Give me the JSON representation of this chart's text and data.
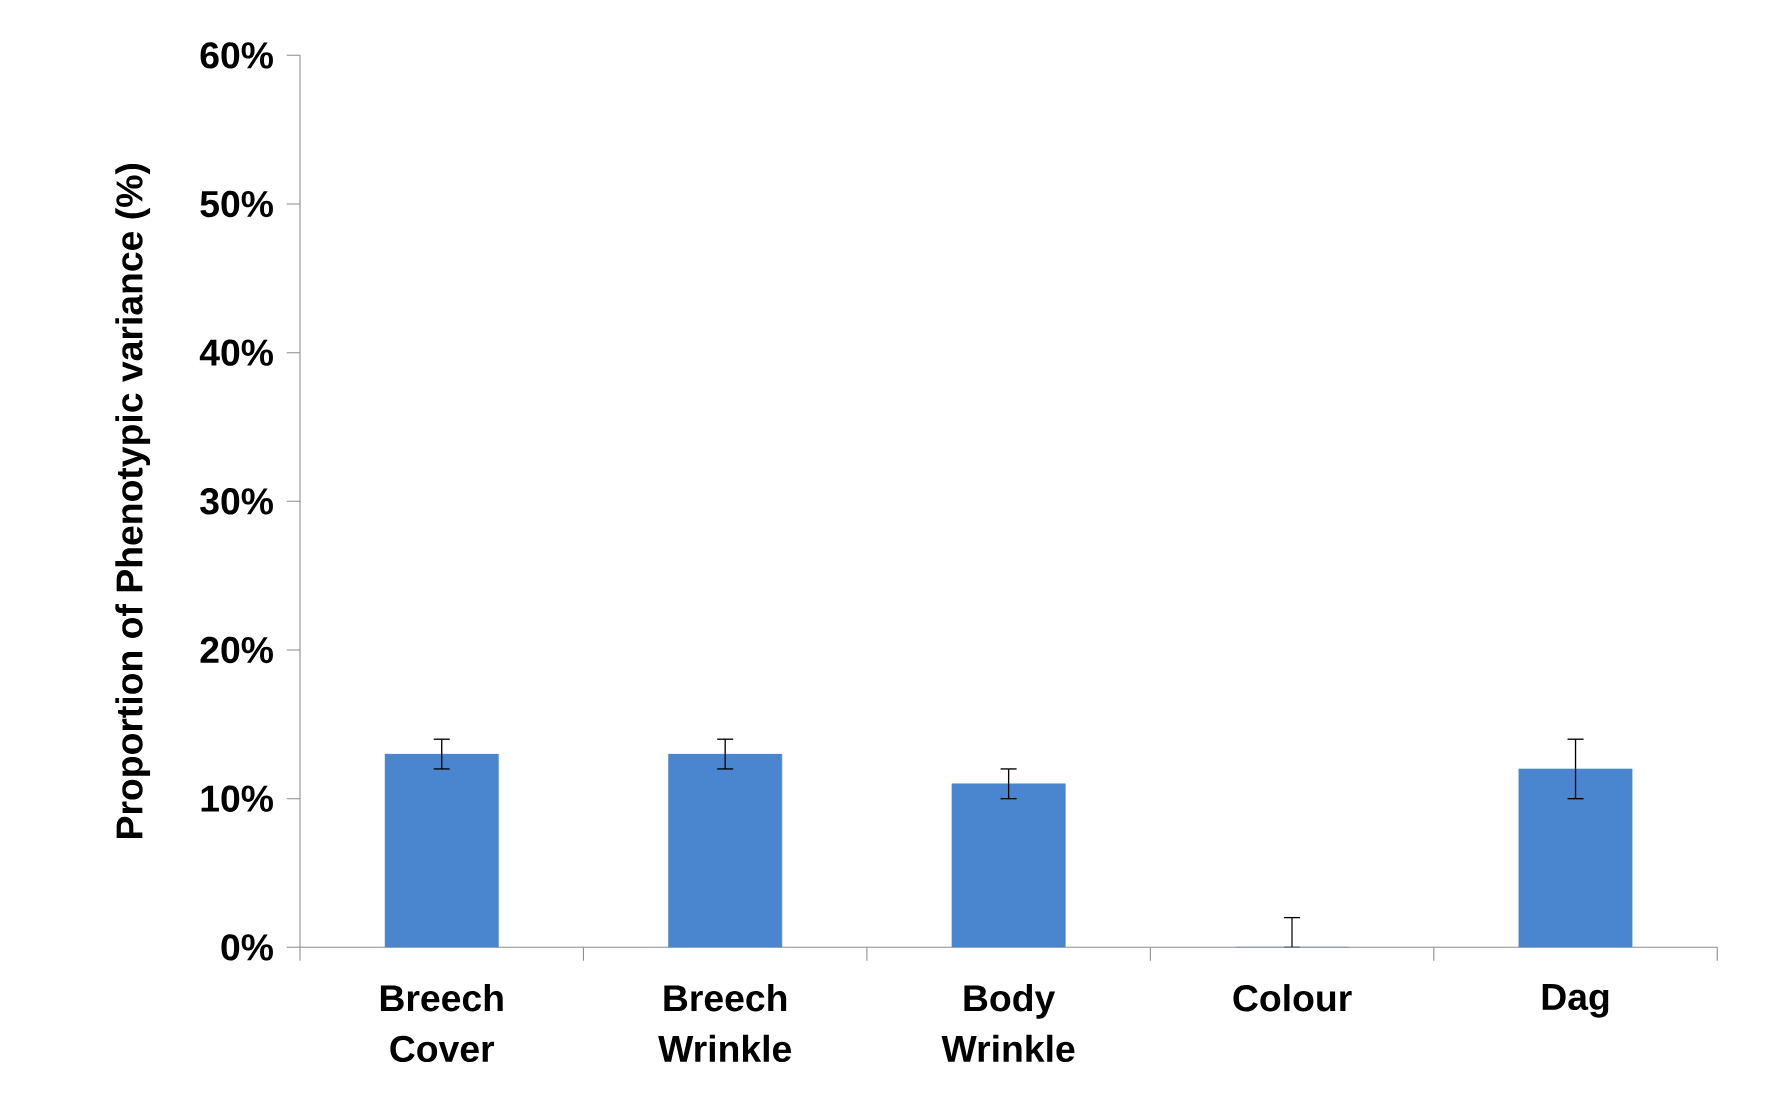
{
  "chart_data": {
    "type": "bar",
    "ylabel": "Proportion of Phenotypic variance (%)",
    "categories": [
      "Breech Cover",
      "Breech Wrinkle",
      "Body Wrinkle",
      "Colour",
      "Dag"
    ],
    "values": [
      13,
      13,
      11,
      0,
      12
    ],
    "errors": [
      1,
      1,
      1,
      [
        0,
        2
      ],
      2
    ],
    "color": "#4a86d0",
    "ylim": [
      0,
      60
    ],
    "yticks": [
      {
        "value": 0,
        "label": "0%"
      },
      {
        "value": 10,
        "label": "10%"
      },
      {
        "value": 20,
        "label": "20%"
      },
      {
        "value": 30,
        "label": "30%"
      },
      {
        "value": 40,
        "label": "40%"
      },
      {
        "value": 50,
        "label": "50%"
      },
      {
        "value": 60,
        "label": "60%"
      }
    ],
    "grid": false
  }
}
